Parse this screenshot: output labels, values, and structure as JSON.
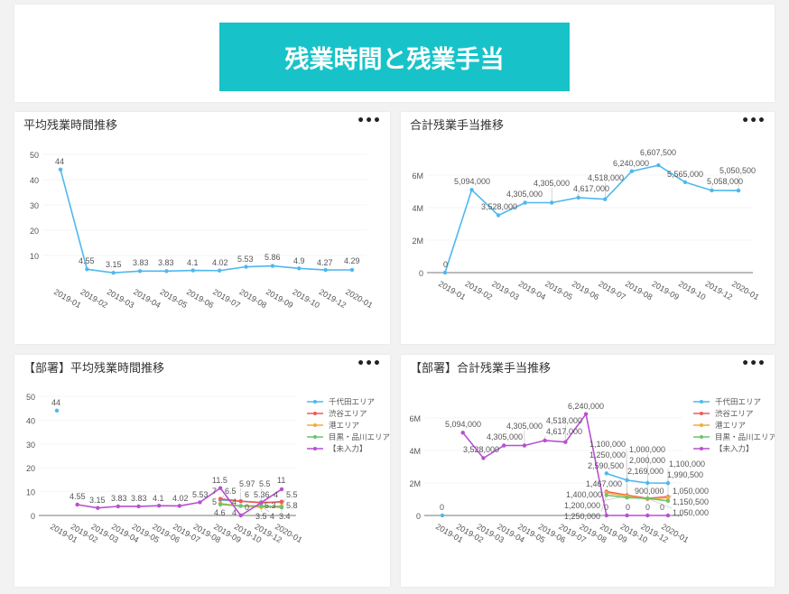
{
  "header": {
    "title": "残業時間と残業手当"
  },
  "menu_label": "•••",
  "colors": {
    "title_bg": "#17c3c8",
    "千代田エリア": "#4db8f0",
    "渋谷エリア": "#ef5a5a",
    "港エリア": "#f5a93a",
    "目黒・品川エリア": "#6cc36c",
    "【未入力】": "#b84fd0"
  },
  "chart_data": [
    {
      "type": "line",
      "title": "平均残業時間推移",
      "categories": [
        "2019-01",
        "2019-02",
        "2019-03",
        "2019-04",
        "2019-05",
        "2019-06",
        "2019-07",
        "2019-08",
        "2019-09",
        "2019-10",
        "2019-12",
        "2020-01"
      ],
      "ylim": [
        0,
        50
      ],
      "yticks": [
        10,
        20,
        30,
        40,
        50
      ],
      "ytick_labels": [
        "10",
        "20",
        "30",
        "40",
        "50"
      ],
      "legend": "none",
      "series": [
        {
          "color": "#4db8f0",
          "values": [
            44,
            4.55,
            3.15,
            3.83,
            3.83,
            4.1,
            4.02,
            5.53,
            5.86,
            4.9,
            4.27,
            4.29
          ],
          "labels": [
            "44",
            "4.55",
            "3.15",
            "3.83",
            "3.83",
            "4.1",
            "4.02",
            "5.53",
            "5.86",
            "4.9",
            "4.27",
            "4.29"
          ]
        }
      ]
    },
    {
      "type": "line",
      "title": "合計残業手当推移",
      "categories": [
        "2019-01",
        "2019-02",
        "2019-03",
        "2019-04",
        "2019-05",
        "2019-06",
        "2019-07",
        "2019-08",
        "2019-09",
        "2019-10",
        "2019-12",
        "2020-01"
      ],
      "ylim": [
        0,
        7000000
      ],
      "yticks": [
        0,
        2000000,
        4000000,
        6000000
      ],
      "ytick_labels": [
        "0",
        "2M",
        "4M",
        "6M"
      ],
      "legend": "none",
      "series": [
        {
          "color": "#4db8f0",
          "values": [
            0,
            5094000,
            3528000,
            4305000,
            4305000,
            4617000,
            4518000,
            6240000,
            6607500,
            5565000,
            5058000,
            5050500
          ],
          "labels": [
            "0",
            "5,094,000",
            "3,528,000",
            "4,305,000",
            "4,305,000",
            "4,617,000",
            "4,518,000",
            "6,240,000",
            "6,607,500",
            "5,565,000",
            "5,058,000",
            "5,050,500"
          ]
        }
      ]
    },
    {
      "type": "line",
      "title": "【部署】平均残業時間推移",
      "categories": [
        "2019-01",
        "2019-02",
        "2019-03",
        "2019-04",
        "2019-05",
        "2019-06",
        "2019-07",
        "2019-08",
        "2019-09",
        "2019-10",
        "2019-12",
        "2020-01"
      ],
      "ylim": [
        0,
        50
      ],
      "yticks": [
        0,
        10,
        20,
        30,
        40,
        50
      ],
      "ytick_labels": [
        "0",
        "10",
        "20",
        "30",
        "40",
        "50"
      ],
      "legend": "top-right",
      "series": [
        {
          "name": "千代田エリア",
          "color": "#4db8f0",
          "values": [
            44,
            null,
            null,
            null,
            null,
            null,
            null,
            null,
            6.5,
            5.97,
            5.5,
            5.5
          ],
          "labels": [
            "44",
            "",
            "",
            "",
            "",
            "",
            "",
            "",
            "6.5",
            "5.97",
            "5.5",
            "5.5"
          ]
        },
        {
          "name": "渋谷エリア",
          "color": "#ef5a5a",
          "values": [
            null,
            null,
            null,
            null,
            null,
            null,
            null,
            null,
            7,
            6,
            5.3,
            5.8
          ],
          "labels": [
            "",
            "",
            "",
            "",
            "",
            "",
            "",
            "",
            "7",
            "6",
            "5.3",
            "5.8"
          ]
        },
        {
          "name": "港エリア",
          "color": "#f5a93a",
          "values": [
            null,
            null,
            null,
            null,
            null,
            null,
            null,
            null,
            5,
            4,
            3.5,
            4
          ],
          "labels": [
            "",
            "",
            "",
            "",
            "",
            "",
            "",
            "",
            "5",
            "4",
            "3.5",
            "4"
          ]
        },
        {
          "name": "目黒・品川エリア",
          "color": "#6cc36c",
          "values": [
            null,
            null,
            null,
            null,
            null,
            null,
            null,
            null,
            4.6,
            4,
            4,
            3.4
          ],
          "labels": [
            "",
            "",
            "",
            "",
            "",
            "",
            "",
            "",
            "4.6",
            "4",
            "4",
            "3.4"
          ]
        },
        {
          "name": "【未入力】",
          "color": "#b84fd0",
          "values": [
            null,
            4.55,
            3.15,
            3.83,
            3.83,
            4.1,
            4.02,
            5.53,
            11.5,
            0,
            5.36,
            11
          ],
          "labels": [
            "",
            "4.55",
            "3.15",
            "3.83",
            "3.83",
            "4.1",
            "4.02",
            "5.53",
            "11.5",
            "0",
            "5.36",
            "11"
          ]
        }
      ]
    },
    {
      "type": "line",
      "title": "【部署】合計残業手当推移",
      "categories": [
        "2019-01",
        "2019-02",
        "2019-03",
        "2019-04",
        "2019-05",
        "2019-06",
        "2019-07",
        "2019-08",
        "2019-09",
        "2019-10",
        "2019-12",
        "2020-01"
      ],
      "ylim": [
        0,
        7000000
      ],
      "yticks": [
        0,
        2000000,
        4000000,
        6000000
      ],
      "ytick_labels": [
        "0",
        "2M",
        "4M",
        "6M"
      ],
      "legend": "top-right",
      "series": [
        {
          "name": "千代田エリア",
          "color": "#4db8f0",
          "values": [
            0,
            null,
            null,
            null,
            null,
            null,
            null,
            null,
            2590500,
            2169000,
            2000000,
            1990500
          ],
          "labels": [
            "0",
            "",
            "",
            "",
            "",
            "",
            "",
            "",
            "2,590,500",
            "2,169,000",
            "2,000,000",
            "1,990,500"
          ]
        },
        {
          "name": "渋谷エリア",
          "color": "#ef5a5a",
          "values": [
            null,
            null,
            null,
            null,
            null,
            null,
            null,
            null,
            1467000,
            1250000,
            1050000,
            1150500
          ],
          "labels": [
            "",
            "",
            "",
            "",
            "",
            "",
            "",
            "",
            "1,467,000",
            "1,250,000",
            "1,050,000",
            "1,150,500"
          ]
        },
        {
          "name": "港エリア",
          "color": "#f5a93a",
          "values": [
            null,
            null,
            null,
            null,
            null,
            null,
            null,
            null,
            1400000,
            1200000,
            1000000,
            1100000
          ],
          "labels": [
            "",
            "",
            "",
            "",
            "",
            "",
            "",
            "",
            "1,400,000",
            "1,200,000",
            "1,000,000",
            "1,100,000"
          ]
        },
        {
          "name": "目黒・品川エリア",
          "color": "#6cc36c",
          "values": [
            null,
            null,
            null,
            null,
            null,
            null,
            null,
            null,
            1250000,
            1100000,
            1050000,
            900000
          ],
          "labels": [
            "",
            "",
            "",
            "",
            "",
            "",
            "",
            "",
            "1,250,000",
            "1,100,000",
            "1,050,000",
            "900,000"
          ]
        },
        {
          "name": "【未入力】",
          "color": "#b84fd0",
          "values": [
            null,
            5094000,
            3528000,
            4305000,
            4305000,
            4617000,
            4518000,
            6240000,
            0,
            0,
            0,
            0
          ],
          "labels": [
            "",
            "5,094,000",
            "3,528,000",
            "4,305,000",
            "4,305,000",
            "4,617,000",
            "4,518,000",
            "6,240,000",
            "0",
            "0",
            "0",
            "0"
          ]
        }
      ]
    }
  ]
}
